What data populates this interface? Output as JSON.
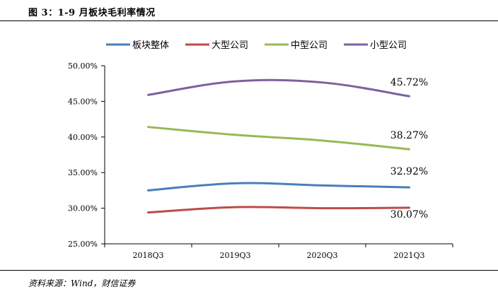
{
  "figure": {
    "title": "图 3：1-9 月板块毛利率情况",
    "source": "资料来源：Wind，财信证券"
  },
  "chart_data": {
    "type": "line",
    "title": "",
    "xlabel": "",
    "ylabel": "",
    "categories": [
      "2018Q3",
      "2019Q3",
      "2020Q3",
      "2021Q3"
    ],
    "ylim": [
      25,
      50
    ],
    "ytick_values": [
      25,
      30,
      35,
      40,
      45,
      50
    ],
    "ytick_labels": [
      "25.00%",
      "30.00%",
      "35.00%",
      "40.00%",
      "45.00%",
      "50.00%"
    ],
    "legend_position": "top",
    "grid": false,
    "series": [
      {
        "name": "板块整体",
        "color": "#4a7ebb",
        "values": [
          32.5,
          33.5,
          33.2,
          32.92
        ],
        "end_label": "32.92%"
      },
      {
        "name": "大型公司",
        "color": "#be4b48",
        "values": [
          29.4,
          30.15,
          30.0,
          30.07
        ],
        "end_label": "30.07%"
      },
      {
        "name": "中型公司",
        "color": "#98b954",
        "values": [
          41.4,
          40.3,
          39.5,
          38.27
        ],
        "end_label": "38.27%"
      },
      {
        "name": "小型公司",
        "color": "#7d60a0",
        "values": [
          45.9,
          47.8,
          47.65,
          45.72
        ],
        "end_label": "45.72%"
      }
    ]
  }
}
